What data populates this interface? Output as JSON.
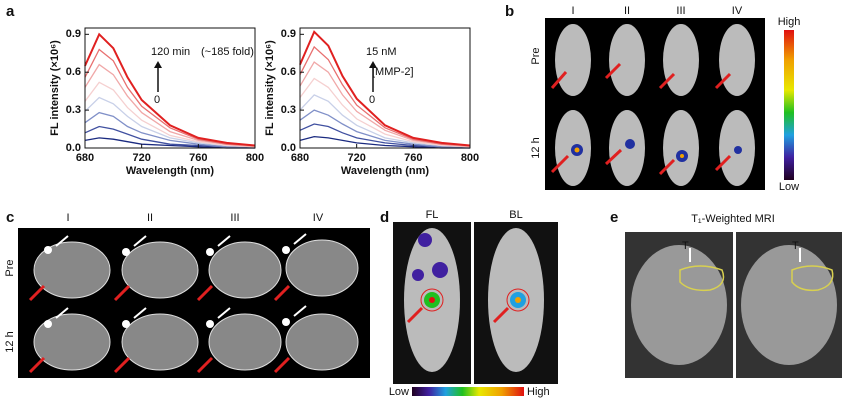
{
  "chart_data": [
    {
      "type": "line",
      "xlabel": "Wavelength (nm)",
      "ylabel": "FL intensity (×10⁶)",
      "x": [
        680,
        690,
        700,
        710,
        720,
        740,
        760,
        780,
        800
      ],
      "xlim": [
        680,
        800
      ],
      "xticks": [
        680,
        720,
        760,
        800
      ],
      "ylim": [
        0,
        0.95
      ],
      "yticks": [
        {
          "value": 0,
          "label": "0.0"
        },
        0.3,
        0.6,
        0.9
      ],
      "annotations": [
        "120 min",
        "(~185 fold)",
        "0"
      ],
      "annotation_colors": [
        "#e02020",
        "#111111",
        "#2040a0"
      ],
      "series": [
        {
          "color": "#e02020",
          "values": [
            0.65,
            0.9,
            0.79,
            0.56,
            0.38,
            0.18,
            0.08,
            0.04,
            0.02
          ]
        },
        {
          "color": "#e87070",
          "values": [
            0.56,
            0.78,
            0.69,
            0.48,
            0.33,
            0.16,
            0.07,
            0.03,
            0.02
          ]
        },
        {
          "color": "#f0a8a8",
          "values": [
            0.48,
            0.66,
            0.58,
            0.41,
            0.28,
            0.13,
            0.06,
            0.03,
            0.01
          ]
        },
        {
          "color": "#f5d0d0",
          "values": [
            0.37,
            0.52,
            0.46,
            0.32,
            0.22,
            0.1,
            0.05,
            0.02,
            0.01
          ]
        },
        {
          "color": "#c8d0e8",
          "values": [
            0.29,
            0.4,
            0.35,
            0.25,
            0.17,
            0.08,
            0.04,
            0.02,
            0.01
          ]
        },
        {
          "color": "#8090c8",
          "values": [
            0.2,
            0.28,
            0.25,
            0.17,
            0.12,
            0.06,
            0.03,
            0.01,
            0.01
          ]
        },
        {
          "color": "#4050a0",
          "values": [
            0.12,
            0.17,
            0.15,
            0.11,
            0.07,
            0.03,
            0.02,
            0.01,
            0
          ]
        },
        {
          "color": "#1a2a80",
          "values": [
            0.06,
            0.08,
            0.07,
            0.05,
            0.03,
            0.02,
            0.01,
            0,
            0
          ]
        }
      ]
    },
    {
      "type": "line",
      "xlabel": "Wavelength (nm)",
      "ylabel": "FL intensity (×10⁶)",
      "x": [
        680,
        690,
        700,
        710,
        720,
        740,
        760,
        780,
        800
      ],
      "xlim": [
        680,
        800
      ],
      "xticks": [
        680,
        720,
        760,
        800
      ],
      "ylim": [
        0,
        0.95
      ],
      "yticks": [
        {
          "value": 0,
          "label": "0.0"
        },
        0.3,
        0.6,
        0.9
      ],
      "annotations": [
        "15 nM",
        "[MMP-2]",
        "0"
      ],
      "annotation_colors": [
        "#e02020",
        "#111111",
        "#2040a0"
      ],
      "series": [
        {
          "color": "#e02020",
          "values": [
            0.66,
            0.92,
            0.81,
            0.57,
            0.39,
            0.18,
            0.08,
            0.04,
            0.02
          ]
        },
        {
          "color": "#e87070",
          "values": [
            0.58,
            0.8,
            0.7,
            0.5,
            0.34,
            0.16,
            0.07,
            0.03,
            0.02
          ]
        },
        {
          "color": "#f0a8a8",
          "values": [
            0.49,
            0.68,
            0.6,
            0.42,
            0.29,
            0.14,
            0.06,
            0.03,
            0.01
          ]
        },
        {
          "color": "#f5d0d0",
          "values": [
            0.4,
            0.55,
            0.48,
            0.34,
            0.23,
            0.11,
            0.05,
            0.02,
            0.01
          ]
        },
        {
          "color": "#c8d0e8",
          "values": [
            0.3,
            0.42,
            0.37,
            0.26,
            0.18,
            0.08,
            0.04,
            0.02,
            0.01
          ]
        },
        {
          "color": "#8090c8",
          "values": [
            0.22,
            0.3,
            0.26,
            0.19,
            0.13,
            0.06,
            0.03,
            0.01,
            0.01
          ]
        },
        {
          "color": "#4050a0",
          "values": [
            0.14,
            0.19,
            0.17,
            0.12,
            0.08,
            0.04,
            0.02,
            0.01,
            0
          ]
        },
        {
          "color": "#1a2a80",
          "values": [
            0.06,
            0.09,
            0.08,
            0.06,
            0.04,
            0.02,
            0.01,
            0,
            0
          ]
        }
      ]
    }
  ],
  "panels": {
    "labels": [
      "a",
      "b",
      "c",
      "d",
      "e"
    ],
    "b": {
      "columns": [
        "I",
        "II",
        "III",
        "IV"
      ],
      "rows": [
        "Pre",
        "12 h"
      ],
      "scale": [
        "High",
        "Low"
      ]
    },
    "c": {
      "columns": [
        "I",
        "II",
        "III",
        "IV"
      ],
      "rows": [
        "Pre",
        "12 h"
      ]
    },
    "d": {
      "columns": [
        "FL",
        "BL"
      ],
      "scale": [
        "Low",
        "High"
      ]
    },
    "e": {
      "title": "T₁-Weighted MRI",
      "markers": [
        "T",
        "T"
      ]
    }
  }
}
